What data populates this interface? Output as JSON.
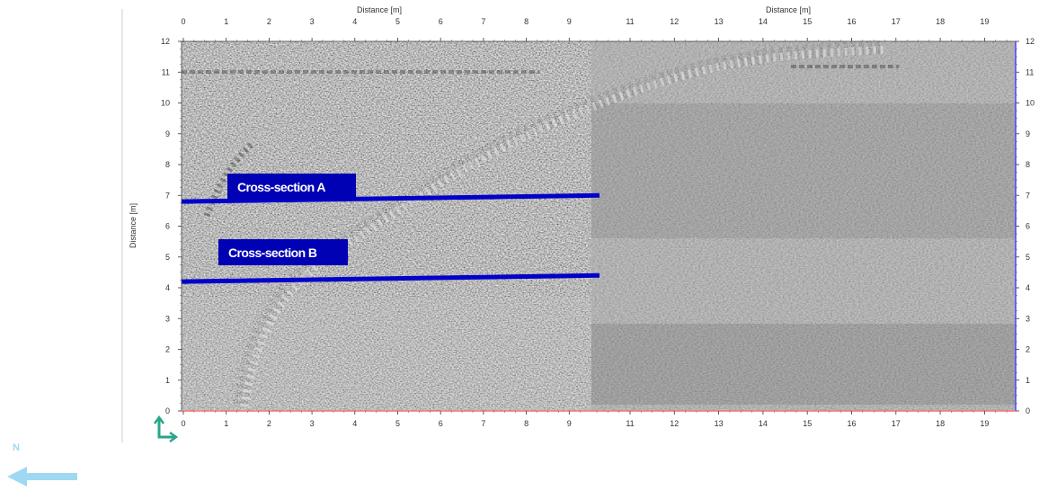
{
  "axes": {
    "x_label_left": "Distance [m]",
    "x_label_right": "Distance [m]",
    "y_label": "Distance [m]",
    "x_ticks_left": [
      "0",
      "1",
      "2",
      "3",
      "4",
      "5",
      "6",
      "7",
      "8",
      "9"
    ],
    "x_ticks_right": [
      "11",
      "12",
      "13",
      "14",
      "15",
      "16",
      "17",
      "18",
      "19"
    ],
    "y_ticks": [
      "0",
      "1",
      "2",
      "3",
      "4",
      "5",
      "6",
      "7",
      "8",
      "9",
      "10",
      "11",
      "12"
    ]
  },
  "annotations": {
    "section_a": {
      "label": "Cross-section A",
      "y_start": 6.8,
      "y_end": 7.0
    },
    "section_b": {
      "label": "Cross-section B",
      "y_start": 4.2,
      "y_end": 4.4
    }
  },
  "north_arrow": {
    "label": "N"
  },
  "colors": {
    "section_line": "#0000cc",
    "label_bg": "#0000b4",
    "label_text": "#ffffff",
    "frame_right": "#4444ff",
    "frame_bottom": "#ff7070",
    "north_arrow": "#9fd8f2",
    "corner_icon": "#2aa58a"
  }
}
